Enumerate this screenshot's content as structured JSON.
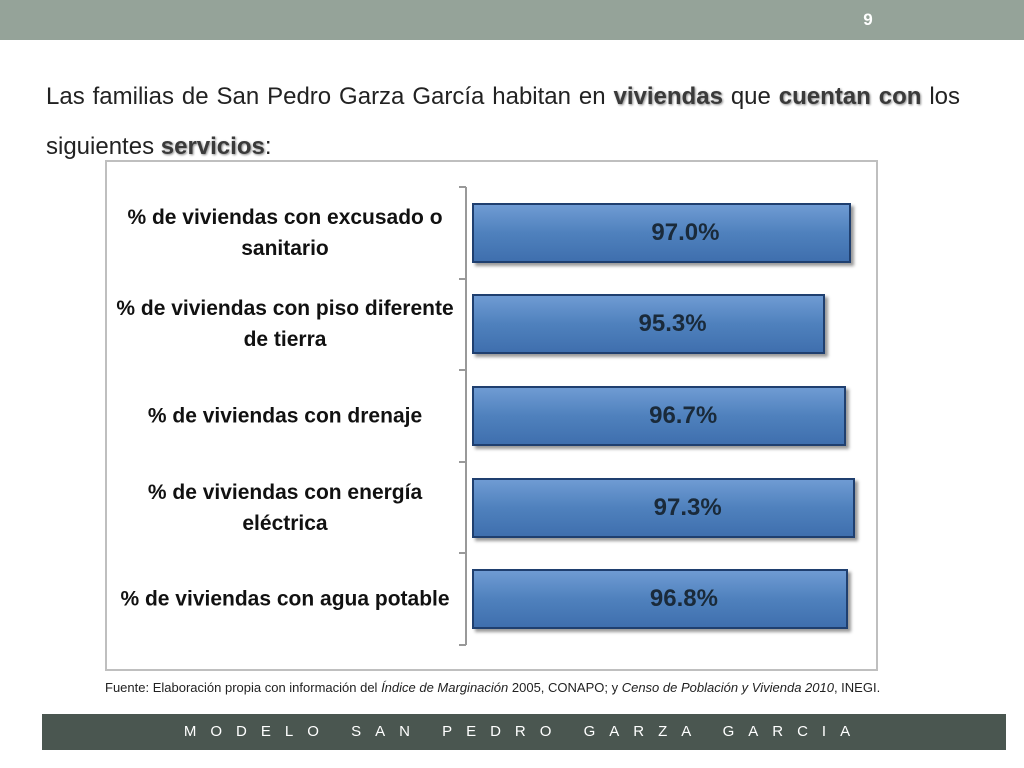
{
  "page_number": "9",
  "heading": [
    {
      "text": "Las familias de San Pedro Garza García habitan en ",
      "bold": false
    },
    {
      "text": "viviendas",
      "bold": true
    },
    {
      "text": " que ",
      "bold": false
    },
    {
      "text": "cuentan con",
      "bold": true
    },
    {
      "text": " los siguientes ",
      "bold": false
    },
    {
      "text": "servicios",
      "bold": true
    },
    {
      "text": ":",
      "bold": false
    }
  ],
  "chart_data": {
    "type": "bar",
    "orientation": "horizontal",
    "categories": [
      "% de viviendas con excusado o sanitario",
      "% de viviendas con piso diferente de tierra",
      "% de viviendas con drenaje",
      "% de viviendas con energía eléctrica",
      "% de viviendas con agua potable"
    ],
    "values": [
      97.0,
      95.3,
      96.7,
      97.3,
      96.8
    ],
    "value_labels": [
      "97.0%",
      "95.3%",
      "96.7%",
      "97.3%",
      "96.8%"
    ],
    "color": "#4f81bd",
    "xlim": [
      72,
      98.4
    ]
  },
  "source": [
    {
      "text": "Fuente: Elaboración propia con información del ",
      "italic": false
    },
    {
      "text": "Índice de Marginación",
      "italic": true
    },
    {
      "text": " 2005, CONAPO; y ",
      "italic": false
    },
    {
      "text": "Censo de Población y Vivienda 2010",
      "italic": true
    },
    {
      "text": ", INEGI.",
      "italic": false
    }
  ],
  "footer": "MODELO SAN PEDRO GARZA GARCIA"
}
